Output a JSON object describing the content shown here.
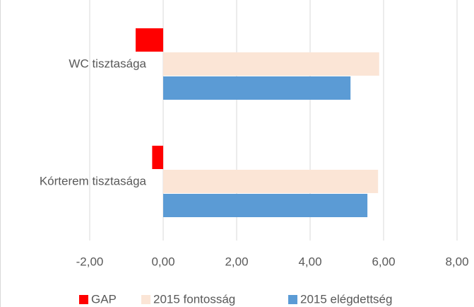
{
  "chart_data": {
    "type": "hbar",
    "categories": [
      "WC tisztasága",
      "Kórterem tisztasága"
    ],
    "series": [
      {
        "name": "GAP",
        "color": "#ff0000",
        "values": [
          -0.75,
          -0.3
        ]
      },
      {
        "name": "2015 fontosság",
        "color": "#fbe5d6",
        "values": [
          5.88,
          5.85
        ]
      },
      {
        "name": "2015 elégdettség",
        "color": "#5b9bd5",
        "values": [
          5.1,
          5.56
        ]
      }
    ],
    "xlim": [
      -2,
      8
    ],
    "xticks": [
      {
        "value": -2,
        "label": "-2,00"
      },
      {
        "value": 0,
        "label": "0,00"
      },
      {
        "value": 2,
        "label": "2,00"
      },
      {
        "value": 4,
        "label": "4,00"
      },
      {
        "value": 6,
        "label": "6,00"
      },
      {
        "value": 8,
        "label": "8,00"
      }
    ],
    "grid": true,
    "legend": "bottom"
  }
}
